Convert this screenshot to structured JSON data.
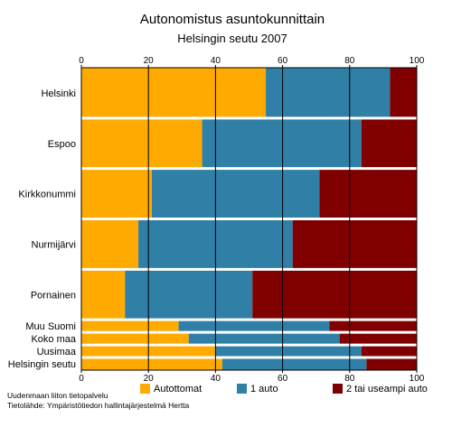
{
  "chart_data": {
    "type": "bar",
    "orientation": "horizontal",
    "stacked": true,
    "title": "Autonomistus asuntokunnittain",
    "subtitle": "Helsingin seutu 2007",
    "xlim": [
      0,
      100
    ],
    "x_ticks": [
      "0",
      "20",
      "40",
      "60",
      "80",
      "100"
    ],
    "grid": true,
    "legend_position": "bottom",
    "categories": [
      "Helsinki",
      "Espoo",
      "Kirkkonummi",
      "Nurmijärvi",
      "Pornainen",
      "Muu Suomi",
      "Koko maa",
      "Uusimaa",
      "Helsingin seutu"
    ],
    "category_weights": [
      1,
      1,
      1,
      1,
      1,
      0.25,
      0.25,
      0.25,
      0.25
    ],
    "series": [
      {
        "name": "Autottomat",
        "color": "#FFAA00",
        "values": [
          55,
          36,
          21,
          17,
          13,
          29,
          32,
          40,
          42
        ]
      },
      {
        "name": "1 auto",
        "color": "#2F7FA6",
        "values": [
          37,
          47.5,
          50,
          46,
          38,
          45,
          45,
          43.5,
          43
        ]
      },
      {
        "name": "2 tai useampi auto",
        "color": "#800000",
        "values": [
          8,
          16.5,
          29,
          37,
          49,
          26,
          23,
          16.5,
          15
        ]
      }
    ]
  },
  "footer": {
    "line1": "Uudenmaan liiton tietopalvelu",
    "line2": "Tietolähde: Ympäristötiedon hallintajärjestelmä Hertta"
  }
}
